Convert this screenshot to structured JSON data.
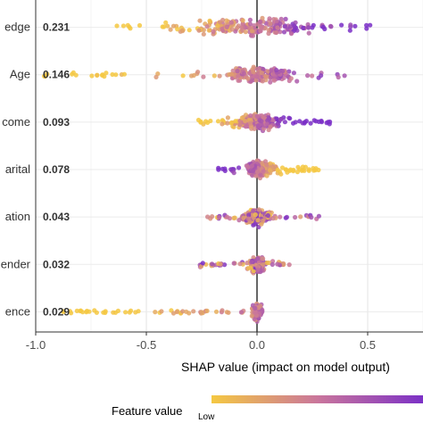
{
  "chart_data": {
    "type": "scatter",
    "subtype": "shap-beeswarm",
    "xlabel": "SHAP value (impact on model output)",
    "xlim": [
      -1.0,
      0.75
    ],
    "xticks": [
      "-1.0",
      "-0.5",
      "0.0",
      "0.5"
    ],
    "grid": true,
    "features": [
      {
        "label": "edge",
        "mean": "0.231",
        "min": -0.7,
        "max": 0.52,
        "core": 0.4,
        "lowSide": "neg"
      },
      {
        "label": "Age",
        "mean": "0.146",
        "min": -0.98,
        "max": 0.4,
        "core": 0.25,
        "lowSide": "neg"
      },
      {
        "label": "come",
        "mean": "0.093",
        "min": -0.28,
        "max": 0.33,
        "core": 0.15,
        "lowSide": "neg"
      },
      {
        "label": "arital",
        "mean": "0.078",
        "min": -0.2,
        "max": 0.28,
        "core": 0.12,
        "lowSide": "pos"
      },
      {
        "label": "ation",
        "mean": "0.043",
        "min": -0.23,
        "max": 0.28,
        "core": 0.08,
        "lowSide": "mix"
      },
      {
        "label": "ender",
        "mean": "0.032",
        "min": -0.26,
        "max": 0.15,
        "core": 0.05,
        "lowSide": "mix"
      },
      {
        "label": "ence",
        "mean": "0.029",
        "min": -0.88,
        "max": 0.06,
        "core": 0.03,
        "lowSide": "neg"
      }
    ],
    "legend": {
      "title": "Feature value",
      "low_label": "Low",
      "colors": [
        "#f5c842",
        "#c9759c",
        "#7a2fc7"
      ]
    }
  }
}
